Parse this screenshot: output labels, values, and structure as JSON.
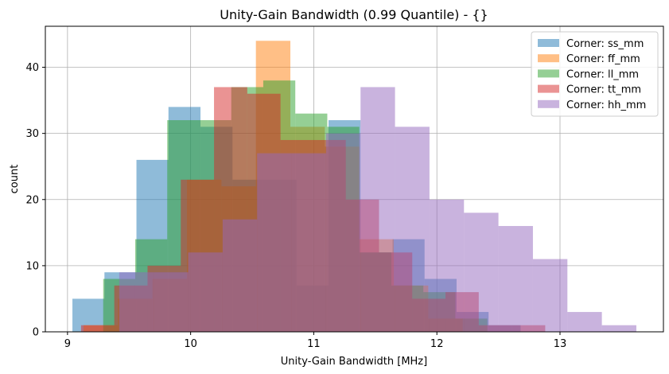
{
  "chart_data": {
    "type": "histogram",
    "title": "Unity-Gain Bandwidth (0.99 Quantile) - {}",
    "xlabel": "Unity-Gain Bandwidth [MHz]",
    "ylabel": "count",
    "xlim": [
      8.82,
      13.84
    ],
    "ylim": [
      0,
      46.2
    ],
    "xticks": [
      9,
      10,
      11,
      12,
      13
    ],
    "yticks": [
      0,
      10,
      20,
      30,
      40
    ],
    "grid": true,
    "legend_position": "top-right",
    "alpha": 0.5,
    "series": [
      {
        "name": "Corner: ss_mm",
        "color": "#1f77b4",
        "edges": [
          9.04,
          9.3,
          9.56,
          9.82,
          10.08,
          10.34,
          10.6,
          10.86,
          11.12,
          11.38,
          11.64,
          11.9,
          12.16,
          12.42,
          12.68
        ],
        "counts": [
          5,
          9,
          26,
          34,
          31,
          23,
          23,
          7,
          32,
          12,
          14,
          8,
          3,
          1
        ]
      },
      {
        "name": "Corner: ff_mm",
        "color": "#ff7f0e",
        "edges": [
          9.13,
          9.41,
          9.69,
          9.97,
          10.25,
          10.53,
          10.81,
          11.09,
          11.37,
          11.65,
          11.93,
          12.21
        ],
        "counts": [
          1,
          5,
          8,
          23,
          22,
          44,
          31,
          28,
          14,
          7,
          2
        ]
      },
      {
        "name": "Corner: ll_mm",
        "color": "#2ca02c",
        "edges": [
          9.29,
          9.55,
          9.81,
          10.07,
          10.33,
          10.59,
          10.85,
          11.11,
          11.37,
          11.63,
          11.89,
          12.15,
          12.41
        ],
        "counts": [
          8,
          14,
          32,
          32,
          37,
          38,
          33,
          31,
          12,
          7,
          6,
          2
        ]
      },
      {
        "name": "Corner: tt_mm",
        "color": "#d62728",
        "edges": [
          9.11,
          9.38,
          9.65,
          9.92,
          10.19,
          10.46,
          10.73,
          10.99,
          11.26,
          11.53,
          11.8,
          12.07,
          12.34,
          12.61,
          12.88
        ],
        "counts": [
          1,
          7,
          10,
          23,
          37,
          36,
          29,
          29,
          20,
          12,
          5,
          6,
          1,
          1
        ]
      },
      {
        "name": "Corner: hh_mm",
        "color": "#9467bd",
        "edges": [
          9.42,
          9.7,
          9.98,
          10.26,
          10.54,
          10.82,
          11.1,
          11.38,
          11.66,
          11.94,
          12.22,
          12.5,
          12.78,
          13.06,
          13.34,
          13.62
        ],
        "counts": [
          9,
          9,
          12,
          17,
          27,
          27,
          30,
          37,
          31,
          20,
          18,
          16,
          11,
          3,
          1
        ]
      }
    ]
  }
}
